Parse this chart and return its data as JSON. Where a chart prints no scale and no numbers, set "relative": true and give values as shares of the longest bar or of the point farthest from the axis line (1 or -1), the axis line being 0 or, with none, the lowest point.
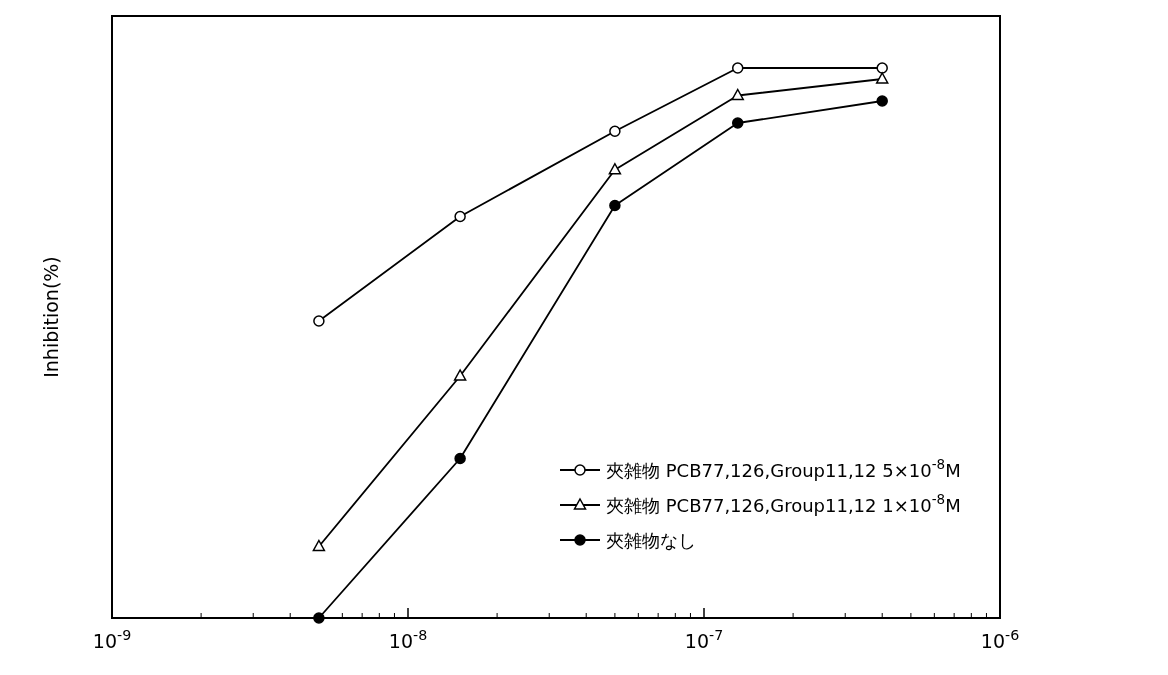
{
  "chart_data": {
    "type": "line",
    "ylabel": "Inhibition(%)",
    "relative": true,
    "log": "x",
    "xlim": [
      1e-09,
      1e-06
    ],
    "xticks": [
      {
        "value": 1e-09,
        "label": "10$^{-9}$"
      },
      {
        "value": 1e-08,
        "label": "10$^{-8}$"
      },
      {
        "value": 1e-07,
        "label": "10$^{-7}$"
      },
      {
        "value": 1e-06,
        "label": "10$^{-6}$"
      }
    ],
    "x": [
      5e-09,
      1.5e-08,
      5e-08,
      1.3e-07,
      4e-07
    ],
    "series": [
      {
        "name": "夾雑物 PCB77,126,Group11,12 5×10$^{-8}$M",
        "color": "#000000",
        "marker": "circle",
        "values": [
          0.54,
          0.73,
          0.885,
          1,
          1
        ]
      },
      {
        "name": "夾雑物 PCB77,126,Group11,12 1×10$^{-8}$M",
        "color": "#000000",
        "marker": "triangle",
        "values": [
          0.13,
          0.44,
          0.815,
          0.95,
          0.98
        ]
      },
      {
        "name": "夾雑物なし",
        "color": "#000000",
        "marker": "circle",
        "values": [
          0,
          0.29,
          0.75,
          0.9,
          0.94
        ]
      }
    ],
    "legend": "bottom right",
    "grid": false
  }
}
